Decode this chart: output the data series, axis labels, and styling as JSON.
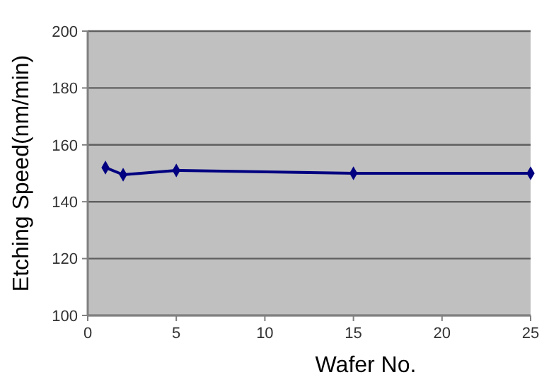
{
  "chart_data": {
    "type": "line",
    "xlabel": "Wafer No.",
    "ylabel": "Etching Speed(nm/min)",
    "x": [
      1,
      2,
      5,
      15,
      25
    ],
    "series": [
      {
        "color": "#000080",
        "values": [
          152,
          149.5,
          151,
          150,
          150
        ]
      }
    ],
    "xlim": [
      0,
      25
    ],
    "xticks": [
      0,
      5,
      10,
      15,
      20,
      25
    ],
    "ylim": [
      100,
      200
    ],
    "yticks": [
      100,
      120,
      140,
      160,
      180,
      200
    ],
    "grid": "y",
    "marker": "diamond",
    "line_style": "solid"
  }
}
